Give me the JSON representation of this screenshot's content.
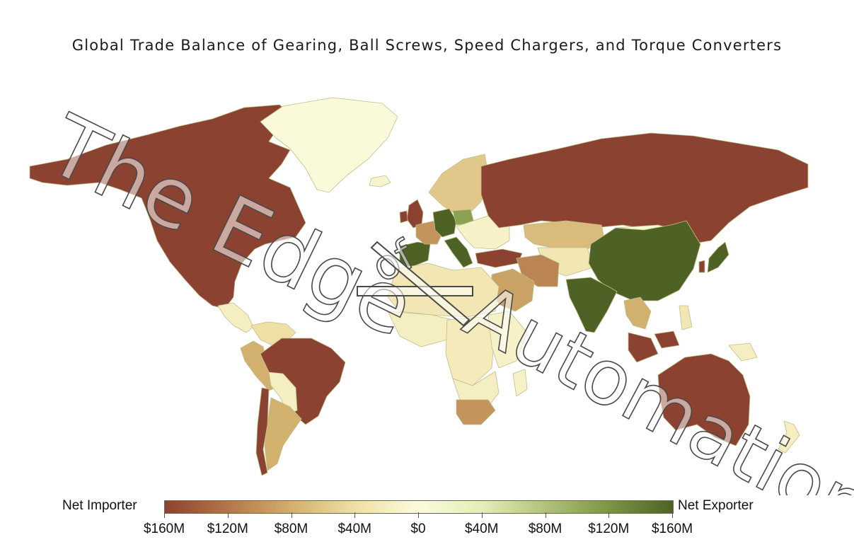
{
  "title": "Global Trade Balance of Gearing, Ball Screws, Speed Chargers, and Torque Converters",
  "watermark": {
    "line1": "The Edge",
    "line2": "of",
    "line3": "Automation"
  },
  "legend": {
    "min_label": "Net Importer",
    "max_label": "Net Exporter",
    "ticks": [
      "$160M",
      "$120M",
      "$80M",
      "$40M",
      "$0",
      "$40M",
      "$80M",
      "$120M",
      "$160M"
    ],
    "colors": [
      "#8c4230",
      "#b3774a",
      "#d2b06e",
      "#efe0a6",
      "#fbfbdc",
      "#e4edb8",
      "#b0c27a",
      "#7d9446",
      "#4e6226"
    ]
  },
  "chart_data": {
    "type": "choropleth",
    "title": "Global Trade Balance of Gearing, Ball Screws, Speed Chargers, and Torque Converters",
    "scale": {
      "domain": [
        -160,
        160
      ],
      "unit": "$M",
      "negative_label": "Net Importer",
      "positive_label": "Net Exporter"
    },
    "regions": [
      {
        "name": "North America",
        "value": -160
      },
      {
        "name": "Greenland",
        "value": 2
      },
      {
        "name": "Central America",
        "value": -20
      },
      {
        "name": "Colombia/Venezuela",
        "value": -40
      },
      {
        "name": "Peru",
        "value": -80
      },
      {
        "name": "Brazil",
        "value": -160
      },
      {
        "name": "Argentina",
        "value": -80
      },
      {
        "name": "Chile",
        "value": -160
      },
      {
        "name": "Bolivia/Paraguay",
        "value": -20
      },
      {
        "name": "Iceland",
        "value": -10
      },
      {
        "name": "United Kingdom",
        "value": -160
      },
      {
        "name": "Ireland",
        "value": -160
      },
      {
        "name": "Iberia",
        "value": 160
      },
      {
        "name": "France",
        "value": -100
      },
      {
        "name": "Germany",
        "value": 160
      },
      {
        "name": "Italy",
        "value": 160
      },
      {
        "name": "Poland",
        "value": 110
      },
      {
        "name": "Scandinavia",
        "value": -60
      },
      {
        "name": "Eastern Europe",
        "value": -15
      },
      {
        "name": "Turkey",
        "value": -160
      },
      {
        "name": "Russia",
        "value": -160
      },
      {
        "name": "Kazakhstan",
        "value": -70
      },
      {
        "name": "Mongolia",
        "value": 10
      },
      {
        "name": "China",
        "value": 160
      },
      {
        "name": "India",
        "value": 160
      },
      {
        "name": "Japan",
        "value": 160
      },
      {
        "name": "South Korea",
        "value": -160
      },
      {
        "name": "Iran",
        "value": -110
      },
      {
        "name": "Saudi Arabia",
        "value": -90
      },
      {
        "name": "Central Asia",
        "value": -30
      },
      {
        "name": "Southeast Asia",
        "value": -80
      },
      {
        "name": "Malaysia",
        "value": -160
      },
      {
        "name": "Indonesia",
        "value": -160
      },
      {
        "name": "Philippines",
        "value": -30
      },
      {
        "name": "North Africa",
        "value": -30
      },
      {
        "name": "West Africa",
        "value": -20
      },
      {
        "name": "Central Africa",
        "value": -25
      },
      {
        "name": "East Africa",
        "value": -15
      },
      {
        "name": "Southern Africa",
        "value": -20
      },
      {
        "name": "South Africa",
        "value": -100
      },
      {
        "name": "Madagascar",
        "value": -15
      },
      {
        "name": "Australia",
        "value": -160
      },
      {
        "name": "New Zealand",
        "value": -20
      },
      {
        "name": "Papua New Guinea",
        "value": -20
      }
    ]
  }
}
